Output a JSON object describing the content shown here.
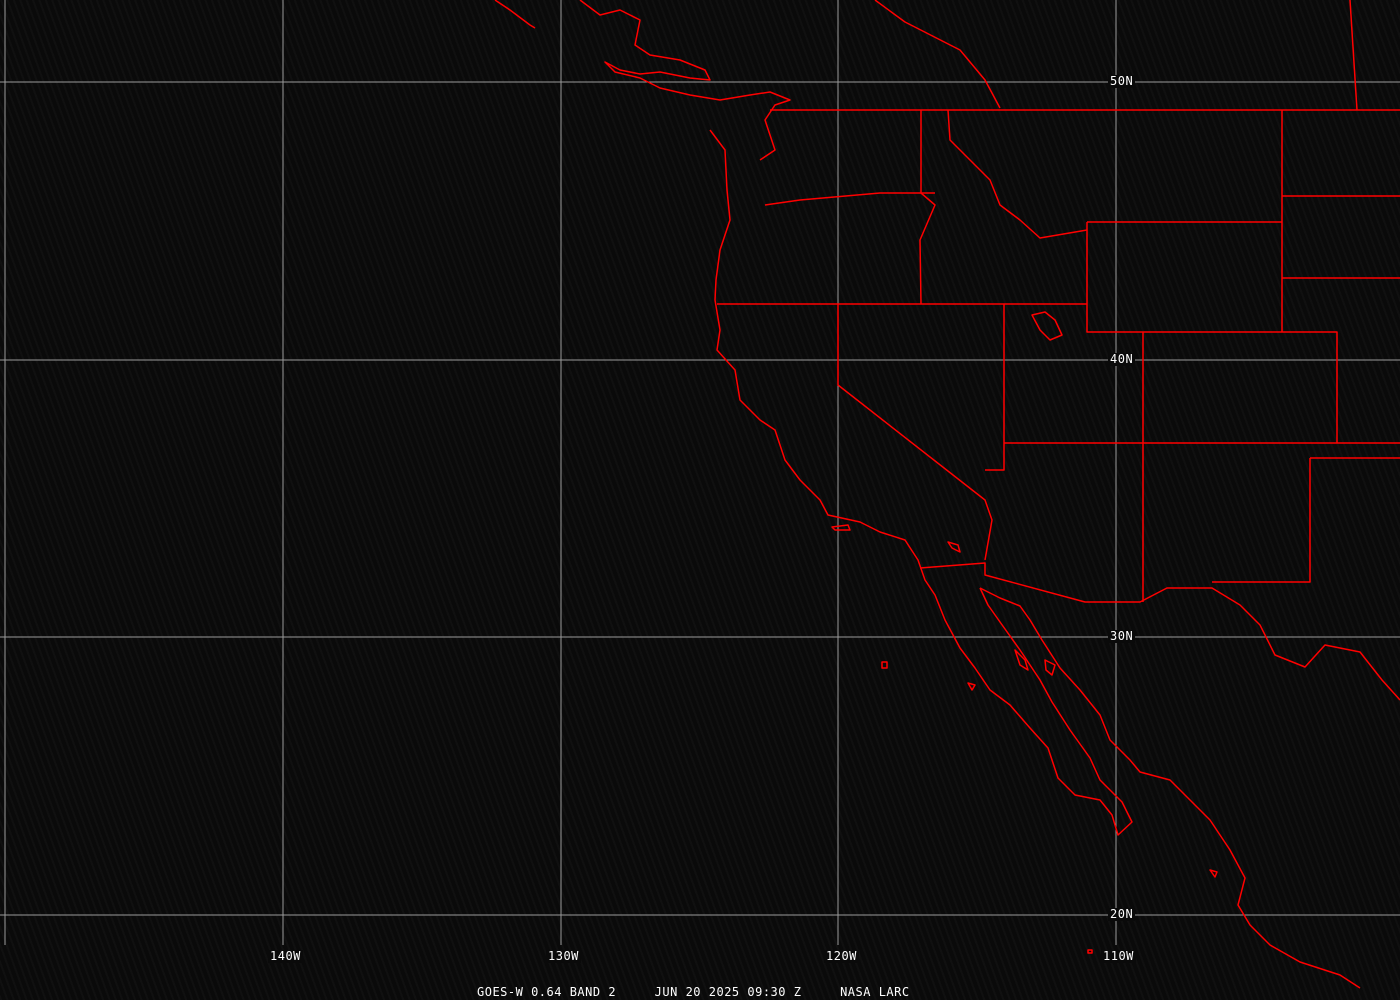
{
  "caption": {
    "satellite": "GOES-W 0.64 BAND 2",
    "datetime": "JUN 20 2025 09:30 Z",
    "source": "NASA LARC"
  },
  "lat_labels": [
    "50N",
    "40N",
    "30N",
    "20N"
  ],
  "lon_labels": [
    "140W",
    "130W",
    "120W",
    "110W"
  ],
  "colors": {
    "boundaries": "#ff0000",
    "grid": "#9a9a9a",
    "background": "#0a0a0a",
    "text": "#ffffff"
  }
}
